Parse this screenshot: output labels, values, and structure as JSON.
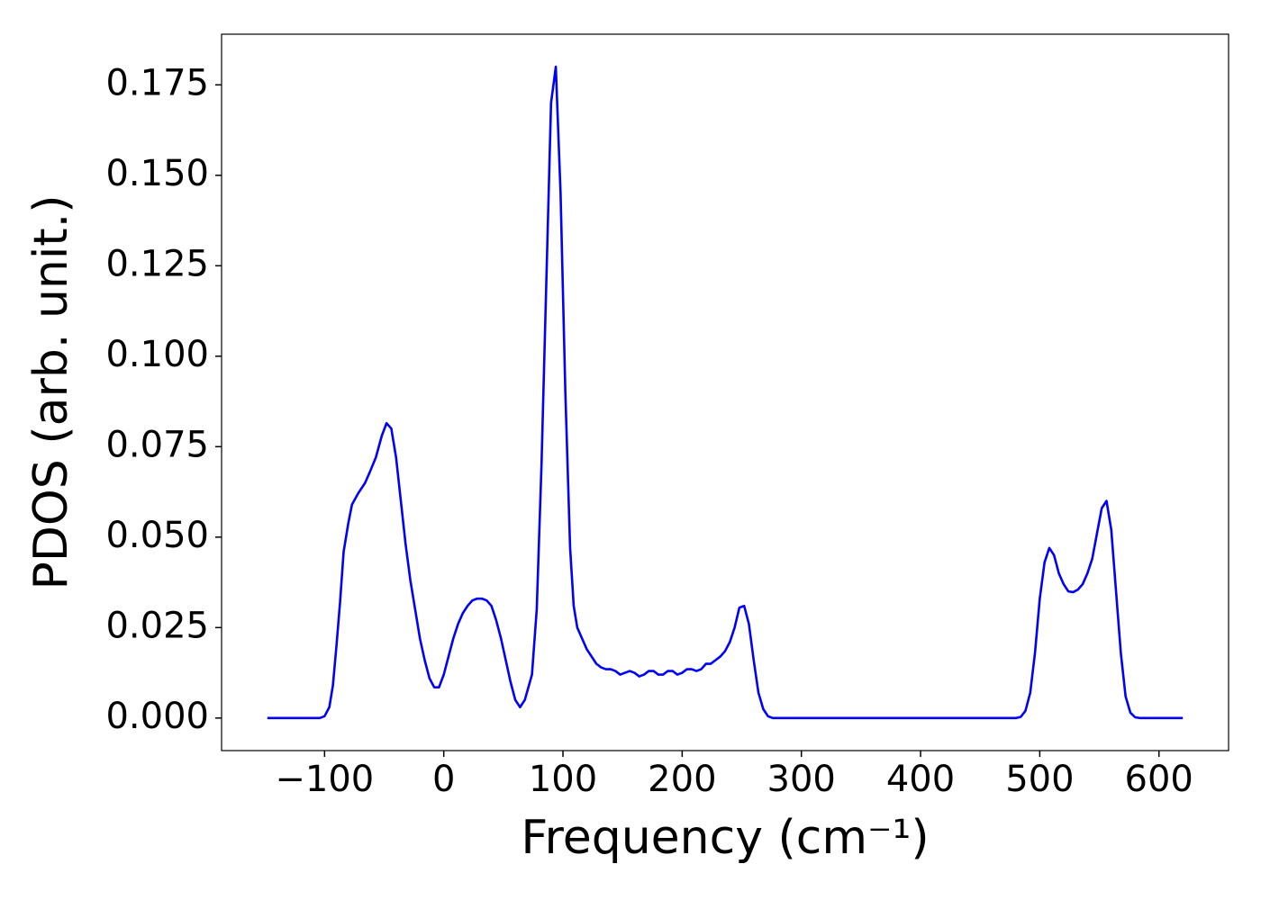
{
  "chart_data": {
    "type": "line",
    "xlabel": "Frequency (cm⁻¹)",
    "ylabel": "PDOS (arb. unit.)",
    "xlim": [
      -186.4,
      658.4
    ],
    "ylim": [
      -0.009,
      0.189
    ],
    "xticks": [
      {
        "value": -100,
        "label": "−100"
      },
      0,
      100,
      200,
      300,
      400,
      500,
      600
    ],
    "yticks": [
      {
        "value": 0,
        "label": "0.000"
      },
      0.025,
      {
        "value": 0.05,
        "label": "0.050"
      },
      0.075,
      {
        "value": 0.1,
        "label": "0.100"
      },
      0.125,
      {
        "value": 0.15,
        "label": "0.150"
      },
      0.175
    ],
    "grid": false,
    "series": [
      {
        "name": "PDOS",
        "color": "#0000ff",
        "x": [
          -148,
          -140,
          -130,
          -120,
          -110,
          -104,
          -100,
          -96,
          -93,
          -90,
          -87,
          -84,
          -80,
          -77,
          -72,
          -66,
          -62,
          -57,
          -52,
          -48,
          -44,
          -40,
          -36,
          -32,
          -28,
          -24,
          -20,
          -16,
          -12,
          -8,
          -4,
          0,
          4,
          8,
          12,
          16,
          20,
          24,
          28,
          32,
          36,
          40,
          44,
          48,
          52,
          56,
          60,
          64,
          68,
          74,
          78,
          82,
          86,
          90,
          94,
          98,
          102,
          106,
          109,
          112,
          116,
          120,
          124,
          128,
          132,
          136,
          140,
          144,
          148,
          152,
          156,
          160,
          164,
          168,
          172,
          176,
          180,
          184,
          188,
          192,
          196,
          200,
          204,
          208,
          212,
          216,
          220,
          224,
          228,
          232,
          236,
          240,
          244,
          248,
          252,
          256,
          260,
          264,
          268,
          272,
          276,
          300,
          350,
          400,
          450,
          480,
          484,
          488,
          492,
          496,
          500,
          504,
          508,
          512,
          516,
          520,
          524,
          528,
          532,
          536,
          540,
          544,
          548,
          552,
          556,
          560,
          564,
          568,
          572,
          576,
          580,
          584,
          600,
          620
        ],
        "values": [
          0,
          0,
          0,
          0,
          0,
          0,
          0.0005,
          0.003,
          0.009,
          0.02,
          0.032,
          0.046,
          0.054,
          0.059,
          0.062,
          0.065,
          0.068,
          0.072,
          0.078,
          0.0815,
          0.08,
          0.072,
          0.06,
          0.048,
          0.038,
          0.03,
          0.022,
          0.016,
          0.011,
          0.0085,
          0.0085,
          0.012,
          0.017,
          0.022,
          0.026,
          0.029,
          0.031,
          0.0325,
          0.033,
          0.033,
          0.0325,
          0.031,
          0.027,
          0.022,
          0.016,
          0.01,
          0.005,
          0.003,
          0.005,
          0.012,
          0.03,
          0.07,
          0.12,
          0.17,
          0.18,
          0.145,
          0.09,
          0.047,
          0.031,
          0.025,
          0.022,
          0.019,
          0.017,
          0.015,
          0.014,
          0.0135,
          0.0135,
          0.013,
          0.012,
          0.0125,
          0.013,
          0.0125,
          0.0115,
          0.012,
          0.013,
          0.013,
          0.012,
          0.012,
          0.013,
          0.013,
          0.012,
          0.0125,
          0.0135,
          0.0135,
          0.013,
          0.0135,
          0.015,
          0.015,
          0.016,
          0.017,
          0.0185,
          0.021,
          0.025,
          0.0305,
          0.031,
          0.026,
          0.016,
          0.007,
          0.0025,
          0.0005,
          0,
          0,
          0,
          0,
          0,
          0,
          0.0003,
          0.002,
          0.007,
          0.018,
          0.033,
          0.043,
          0.047,
          0.045,
          0.04,
          0.037,
          0.035,
          0.0348,
          0.0355,
          0.037,
          0.04,
          0.044,
          0.051,
          0.058,
          0.06,
          0.052,
          0.035,
          0.018,
          0.006,
          0.0015,
          0.0002,
          0,
          0,
          0
        ]
      }
    ]
  }
}
